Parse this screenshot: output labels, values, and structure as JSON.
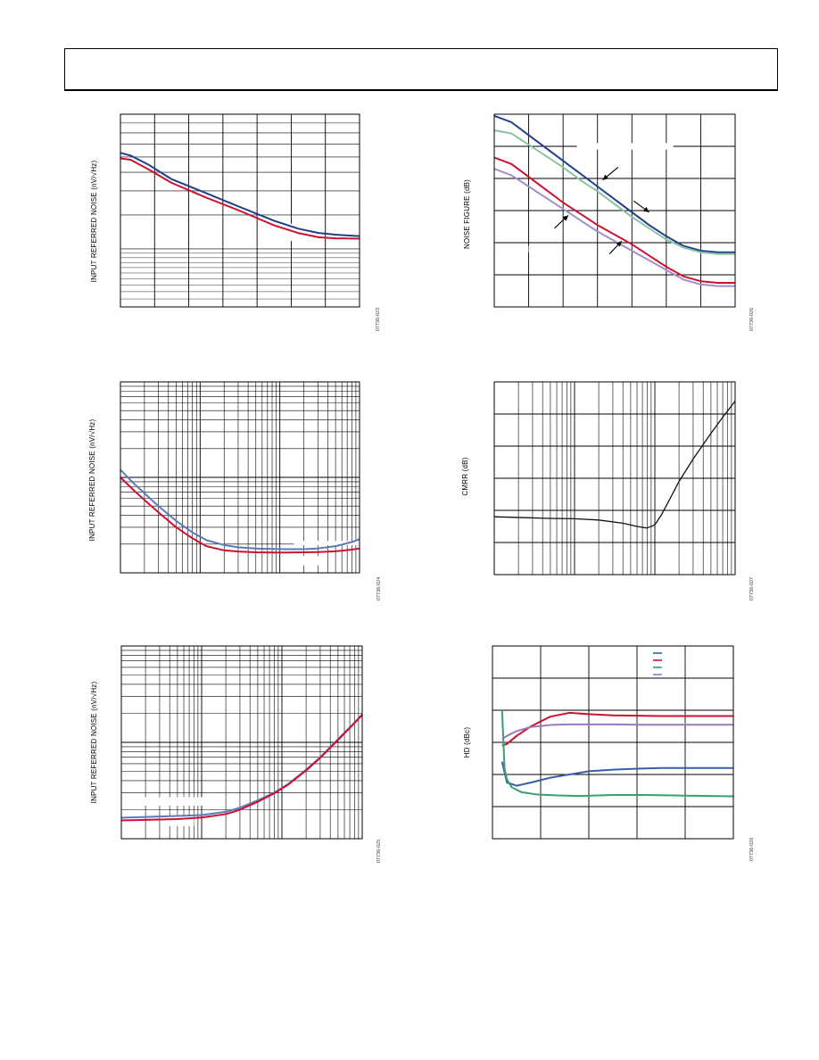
{
  "charts": [
    {
      "id": "c1",
      "ylabel": "INPUT REFERRED NOISE (nV/√Hz)",
      "code": "07736-023",
      "x": {
        "type": "lin",
        "min": 0,
        "max": 7,
        "major": 1
      },
      "y": {
        "type": "log",
        "min": 1,
        "max": 10,
        "minor_log": [
          1,
          2,
          3,
          4,
          5,
          6,
          7,
          8,
          9,
          10
        ]
      },
      "mask": [
        {
          "x0": 4.5,
          "x1": 5.4,
          "y0": 2.2,
          "y1": 2.7
        }
      ],
      "series": [
        {
          "color": "#1f3f8a",
          "x": [
            0,
            0.3,
            0.8,
            1.5,
            2.5,
            3.5,
            4.5,
            5.2,
            5.8,
            6.3,
            7
          ],
          "y": [
            6.3,
            6.1,
            5.5,
            4.6,
            3.9,
            3.3,
            2.8,
            2.55,
            2.42,
            2.37,
            2.33
          ]
        },
        {
          "color": "#cc1133",
          "x": [
            0,
            0.3,
            0.8,
            1.5,
            2.5,
            3.5,
            4.5,
            5.2,
            5.8,
            6.3,
            7
          ],
          "y": [
            5.9,
            5.8,
            5.2,
            4.4,
            3.7,
            3.15,
            2.65,
            2.42,
            2.3,
            2.27,
            2.26
          ]
        }
      ]
    },
    {
      "id": "c2",
      "ylabel": "NOISE FIGURE (dB)",
      "code": "07736-026",
      "x": {
        "type": "lin",
        "min": 0,
        "max": 7,
        "major": 1
      },
      "y": {
        "type": "lin",
        "min": 0,
        "max": 6,
        "major": 1
      },
      "mask": [
        {
          "x0": 2.4,
          "x1": 5.2,
          "y0": 4.9,
          "y1": 5.1
        },
        {
          "x0": 1.0,
          "x1": 1.6,
          "y0": 1.7,
          "y1": 1.9
        }
      ],
      "series": [
        {
          "color": "#1f3f8a",
          "x": [
            0,
            0.5,
            1,
            1.5,
            2,
            2.5,
            3,
            3.5,
            4,
            4.5,
            5,
            5.5,
            6,
            6.5,
            7
          ],
          "y": [
            5.95,
            5.75,
            5.35,
            4.95,
            4.55,
            4.15,
            3.75,
            3.35,
            2.95,
            2.55,
            2.2,
            1.9,
            1.75,
            1.7,
            1.7
          ]
        },
        {
          "color": "#88c4a0",
          "x": [
            0,
            0.5,
            1,
            1.5,
            2,
            2.5,
            3,
            3.5,
            4,
            4.5,
            5,
            5.5,
            6,
            6.5,
            7
          ],
          "y": [
            5.5,
            5.4,
            5.05,
            4.7,
            4.35,
            3.95,
            3.6,
            3.2,
            2.8,
            2.45,
            2.1,
            1.85,
            1.7,
            1.65,
            1.65
          ]
        },
        {
          "color": "#cc1133",
          "x": [
            0,
            0.5,
            1,
            1.5,
            2,
            2.5,
            3,
            3.5,
            4,
            4.5,
            5,
            5.5,
            6,
            6.5,
            7
          ],
          "y": [
            4.65,
            4.45,
            4.05,
            3.65,
            3.25,
            2.9,
            2.55,
            2.25,
            1.95,
            1.6,
            1.25,
            0.95,
            0.8,
            0.75,
            0.75
          ]
        },
        {
          "color": "#a58ec8",
          "x": [
            0,
            0.5,
            1,
            1.5,
            2,
            2.5,
            3,
            3.5,
            4,
            4.5,
            5,
            5.5,
            6,
            6.5,
            7
          ],
          "y": [
            4.3,
            4.1,
            3.75,
            3.4,
            3.05,
            2.7,
            2.35,
            2.05,
            1.75,
            1.45,
            1.15,
            0.85,
            0.7,
            0.65,
            0.65
          ]
        }
      ],
      "arrows": [
        {
          "x1": 3.6,
          "y1": 4.35,
          "x2": 3.15,
          "y2": 3.95
        },
        {
          "x1": 4.05,
          "y1": 3.3,
          "x2": 4.5,
          "y2": 2.95
        },
        {
          "x1": 1.75,
          "y1": 2.45,
          "x2": 2.15,
          "y2": 2.85
        },
        {
          "x1": 3.35,
          "y1": 1.65,
          "x2": 3.7,
          "y2": 2.05
        }
      ]
    },
    {
      "id": "c3",
      "ylabel": "INPUT REFERRED NOISE (nV/√Hz)",
      "code": "07736-024",
      "x": {
        "type": "log",
        "min": 1,
        "max": 1000
      },
      "y": {
        "type": "log",
        "min": 1,
        "max": 100
      },
      "mask": [
        {
          "x0": 150,
          "x1": 1000,
          "y0": 1.95,
          "y1": 2.15
        },
        {
          "x0": 150,
          "x1": 310,
          "y0": 1.2,
          "y1": 1.5
        }
      ],
      "series": [
        {
          "color": "#5a7ab8",
          "x": [
            1,
            1.5,
            2,
            3,
            5,
            8,
            12,
            20,
            30,
            50,
            80,
            120,
            200,
            300,
            500,
            800,
            1000
          ],
          "y": [
            12,
            8.5,
            6.8,
            5.0,
            3.5,
            2.65,
            2.2,
            1.95,
            1.85,
            1.8,
            1.78,
            1.77,
            1.77,
            1.8,
            1.9,
            2.1,
            2.25
          ]
        },
        {
          "color": "#cc1133",
          "x": [
            1,
            1.5,
            2,
            3,
            5,
            8,
            12,
            20,
            30,
            50,
            80,
            120,
            200,
            300,
            500,
            800,
            1000
          ],
          "y": [
            10,
            7.2,
            5.8,
            4.3,
            3.0,
            2.3,
            1.9,
            1.72,
            1.67,
            1.64,
            1.63,
            1.63,
            1.64,
            1.65,
            1.68,
            1.75,
            1.8
          ]
        }
      ]
    },
    {
      "id": "c4",
      "ylabel": "CMRR (dB)",
      "code": "07736-027",
      "x": {
        "type": "log",
        "min": 1,
        "max": 1000
      },
      "y": {
        "type": "lin",
        "min": 0,
        "max": 6,
        "major": 1
      },
      "series": [
        {
          "color": "#111111",
          "x": [
            1,
            2,
            5,
            10,
            20,
            40,
            60,
            80,
            100,
            120,
            150,
            200,
            300,
            500,
            700,
            1000
          ],
          "y": [
            1.8,
            1.78,
            1.75,
            1.74,
            1.7,
            1.6,
            1.5,
            1.45,
            1.55,
            1.85,
            2.3,
            2.9,
            3.6,
            4.4,
            4.9,
            5.4
          ]
        }
      ]
    },
    {
      "id": "c5",
      "ylabel": "INPUT REFERRED NOISE (nV/√Hz)",
      "code": "07736-025",
      "x": {
        "type": "log",
        "min": 1,
        "max": 1000
      },
      "y": {
        "type": "log",
        "min": 1,
        "max": 100
      },
      "mask": [
        {
          "x0": 1.3,
          "x1": 18,
          "y0": 2.2,
          "y1": 2.7
        },
        {
          "x0": 3.5,
          "x1": 8,
          "y0": 1.35,
          "y1": 1.7
        }
      ],
      "series": [
        {
          "color": "#5a7ab8",
          "x": [
            1,
            2,
            5,
            10,
            20,
            30,
            50,
            80,
            120,
            200,
            300,
            500,
            800,
            1000
          ],
          "y": [
            1.65,
            1.68,
            1.72,
            1.76,
            1.9,
            2.1,
            2.5,
            3.0,
            3.7,
            5.2,
            7.0,
            10.8,
            16,
            19.5
          ]
        },
        {
          "color": "#cc1133",
          "x": [
            1,
            2,
            5,
            10,
            20,
            30,
            50,
            80,
            120,
            200,
            300,
            500,
            800,
            1000
          ],
          "y": [
            1.55,
            1.57,
            1.6,
            1.66,
            1.8,
            2.0,
            2.42,
            2.95,
            3.65,
            5.1,
            6.9,
            10.6,
            15.8,
            19.3
          ]
        }
      ]
    },
    {
      "id": "c6",
      "ylabel": "HD (dBc)",
      "code": "07736-028",
      "x": {
        "type": "lin",
        "min": 0,
        "max": 5,
        "major": 1
      },
      "y": {
        "type": "lin",
        "min": 0,
        "max": 6,
        "major": 1
      },
      "legend": {
        "position": "top-right",
        "colors": [
          "#3a5ea8",
          "#cc1133",
          "#3aa070",
          "#9a78c0"
        ]
      },
      "series": [
        {
          "color": "#3a5ea8",
          "x": [
            0.2,
            0.3,
            0.5,
            0.8,
            1.2,
            1.6,
            2,
            2.5,
            3,
            3.5,
            4,
            4.5,
            5
          ],
          "y": [
            2.4,
            1.75,
            1.65,
            1.75,
            1.9,
            2.0,
            2.1,
            2.15,
            2.18,
            2.2,
            2.2,
            2.2,
            2.2
          ]
        },
        {
          "color": "#cc1133",
          "x": [
            0.2,
            0.3,
            0.5,
            0.8,
            1.2,
            1.6,
            2,
            2.5,
            3,
            3.5,
            4,
            4.5,
            5
          ],
          "y": [
            2.9,
            2.95,
            3.2,
            3.5,
            3.8,
            3.92,
            3.88,
            3.84,
            3.83,
            3.82,
            3.82,
            3.82,
            3.82
          ]
        },
        {
          "color": "#3aa070",
          "x": [
            0.2,
            0.25,
            0.3,
            0.4,
            0.6,
            0.9,
            1.3,
            1.8,
            2.5,
            3.2,
            4,
            4.5,
            5
          ],
          "y": [
            4.0,
            2.2,
            1.85,
            1.6,
            1.45,
            1.38,
            1.35,
            1.33,
            1.36,
            1.36,
            1.34,
            1.33,
            1.32
          ]
        },
        {
          "color": "#9a78c0",
          "x": [
            0.2,
            0.3,
            0.5,
            0.8,
            1.2,
            1.6,
            2,
            2.5,
            3,
            3.5,
            4,
            4.5,
            5
          ],
          "y": [
            3.1,
            3.2,
            3.35,
            3.48,
            3.54,
            3.56,
            3.56,
            3.56,
            3.55,
            3.55,
            3.55,
            3.55,
            3.55
          ]
        }
      ]
    }
  ]
}
